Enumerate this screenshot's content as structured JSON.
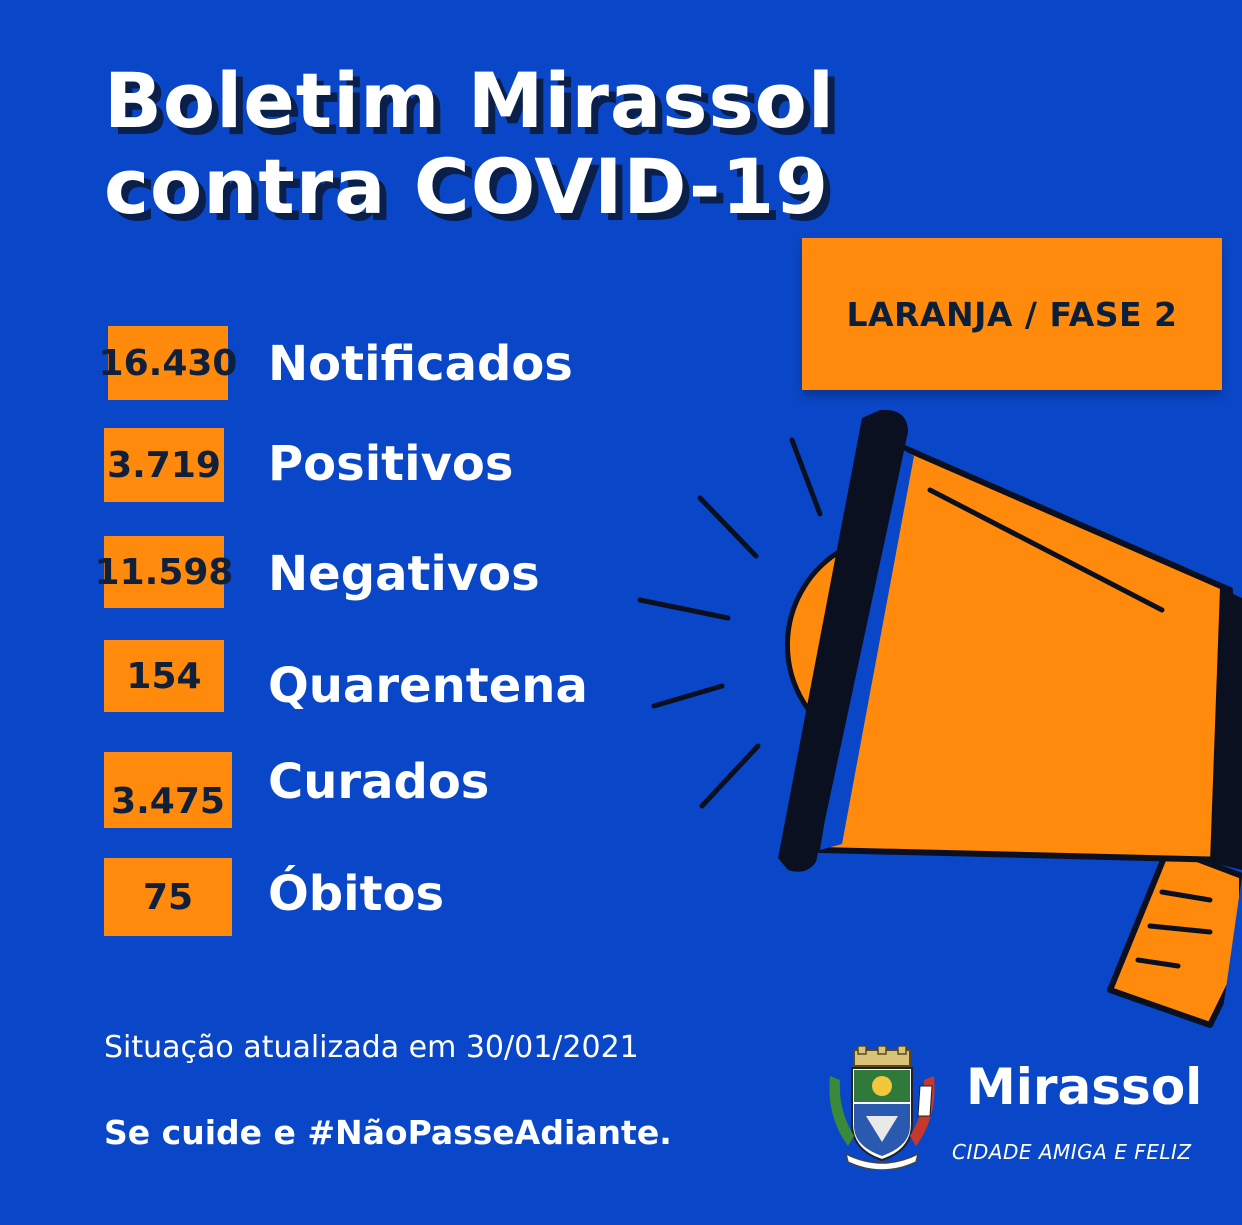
{
  "title": {
    "line1": "Boletim  Mirassol",
    "line2": "contra COVID-19"
  },
  "phase": "LARANJA / FASE 2",
  "stats": [
    {
      "value": "16.430",
      "label": "Notificados"
    },
    {
      "value": "3.719",
      "label": "Positivos"
    },
    {
      "value": "11.598",
      "label": "Negativos"
    },
    {
      "value": "154",
      "label": "Quarentena"
    },
    {
      "value": "3.475",
      "label": "Curados"
    },
    {
      "value": "75",
      "label": "Óbitos"
    }
  ],
  "footer": {
    "updated": "Situação atualizada em 30/01/2021",
    "hashtag": "Se cuide e #NãoPasseAdiante."
  },
  "brand": {
    "name": "Mirassol",
    "slogan": "CIDADE AMIGA E FELIZ"
  },
  "colors": {
    "background": "#0a47c8",
    "accent": "#ff8a0c",
    "text_dark": "#10203a"
  },
  "icons": [
    "megaphone-icon",
    "city-crest-icon"
  ]
}
